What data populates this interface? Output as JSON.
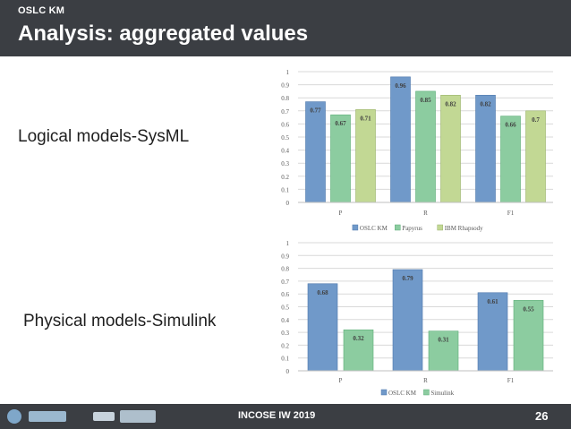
{
  "header": {
    "kicker": "OSLC KM",
    "title": "Analysis: aggregated values"
  },
  "labels": {
    "chart1": "Logical models-SysML",
    "chart2": "Physical models-Simulink"
  },
  "footer": {
    "text": "INCOSE IW 2019",
    "page": "26"
  },
  "colors": {
    "header_bg": "#3b3e43",
    "oslc": "#7099c9",
    "papyrus": "#8ccca0",
    "rhapsody": "#c2d894"
  },
  "chart_data": [
    {
      "type": "bar",
      "title": "",
      "categories": [
        "P",
        "R",
        "F1"
      ],
      "series": [
        {
          "name": "OSLC KM",
          "values": [
            0.77,
            0.96,
            0.82
          ],
          "labels": [
            "0.77",
            "0.96",
            "0.82"
          ]
        },
        {
          "name": "Papyrus",
          "values": [
            0.67,
            0.85,
            0.66
          ],
          "labels": [
            "0.67",
            "0.85",
            "0.66"
          ]
        },
        {
          "name": "IBM Rhapsody",
          "values": [
            0.71,
            0.82,
            0.7
          ],
          "labels": [
            "0.71",
            "0.82",
            "0.7"
          ]
        }
      ],
      "ylim": [
        0,
        1
      ],
      "yticks": [
        "0",
        "0.1",
        "0.2",
        "0.3",
        "0.4",
        "0.5",
        "0.6",
        "0.7",
        "0.8",
        "0.9",
        "1"
      ],
      "grid": true,
      "legend": "bottom"
    },
    {
      "type": "bar",
      "title": "",
      "categories": [
        "P",
        "R",
        "F1"
      ],
      "series": [
        {
          "name": "OSLC KM",
          "values": [
            0.68,
            0.79,
            0.61
          ],
          "labels": [
            "0.68",
            "0.79",
            "0.61"
          ]
        },
        {
          "name": "Simulink",
          "values": [
            0.32,
            0.31,
            0.55
          ],
          "labels": [
            "0.32",
            "0.31",
            "0.55"
          ]
        }
      ],
      "ylim": [
        0,
        1
      ],
      "yticks": [
        "0",
        "0.1",
        "0.2",
        "0.3",
        "0.4",
        "0.5",
        "0.6",
        "0.7",
        "0.8",
        "0.9",
        "1"
      ],
      "grid": true,
      "legend": "bottom"
    }
  ]
}
